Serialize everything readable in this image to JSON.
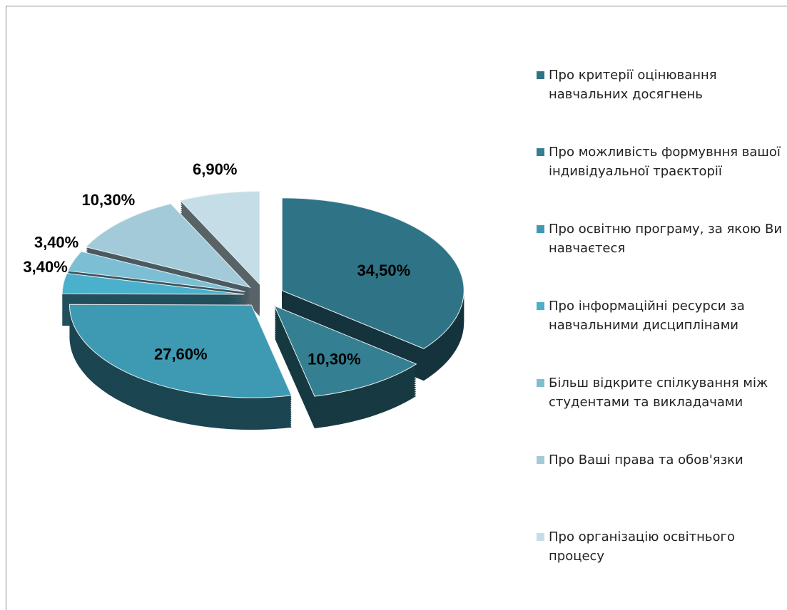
{
  "chart_data": {
    "type": "pie",
    "categories": [
      "Про критерії оцінювання навчальних досягнень",
      "Про можливість формувння вашої індивідуальної траєкторії",
      "Про освітню програму, за якою Ви навчаєтеся",
      "Про інформаційні ресурси за навчальними дисциплінами",
      "Більш відкрите спілкування між студентами та викладачами",
      "Про Ваші права та обов'язки",
      "Про організацію освітнього процесу"
    ],
    "values": [
      34.5,
      10.3,
      27.6,
      3.4,
      3.4,
      10.3,
      6.9
    ],
    "value_labels": [
      "34,50%",
      "10,30%",
      "27,60%",
      "3,40%",
      "3,40%",
      "10,30%",
      "6,90%"
    ],
    "colors": [
      "#2f7386",
      "#347f91",
      "#3e9ab2",
      "#4ab0cc",
      "#7cbfd4",
      "#a3cad9",
      "#c4dde7"
    ],
    "legend": "right"
  }
}
